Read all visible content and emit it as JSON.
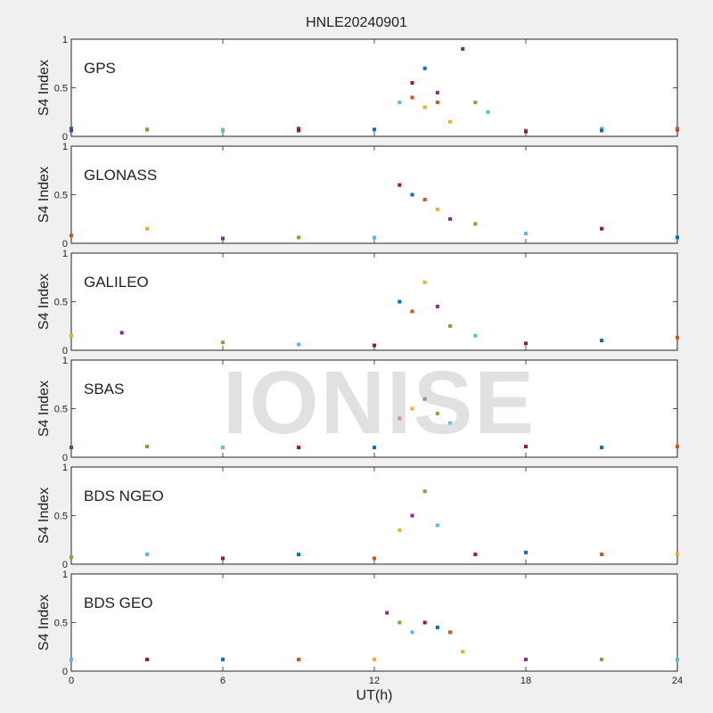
{
  "figure": {
    "title": "HNLE20240901",
    "xlabel": "UT(h)",
    "watermark": "IONISE"
  },
  "chart_data": {
    "type": "scatter",
    "xlim": [
      0,
      24
    ],
    "xticks": [
      0,
      6,
      12,
      18,
      24
    ],
    "ylabel": "S4 Index",
    "palette": [
      "#0072BD",
      "#D95319",
      "#EDB120",
      "#7E2F8E",
      "#77AC30",
      "#4DBEEE",
      "#A2142F"
    ],
    "panels": [
      {
        "name": "GPS",
        "ylim": [
          0,
          1
        ],
        "yticks": [
          0,
          0.5,
          1
        ],
        "series": [
          {
            "x": [
              0,
              3,
              6,
              9,
              12,
              13,
              13.5,
              14,
              14.5,
              15,
              15.5,
              18,
              21,
              24
            ],
            "y": [
              0.08,
              0.07,
              0.07,
              0.08,
              0.07,
              0.35,
              0.55,
              0.7,
              0.35,
              0.15,
              0.9,
              0.06,
              0.08,
              0.07
            ]
          },
          {
            "x": [
              0,
              3,
              6,
              9,
              12,
              13.5,
              14,
              14.5,
              16,
              16.5,
              18,
              21,
              24
            ],
            "y": [
              0.06,
              0.07,
              0.06,
              0.06,
              0.07,
              0.4,
              0.3,
              0.45,
              0.35,
              0.25,
              0.05,
              0.06,
              0.08
            ]
          }
        ]
      },
      {
        "name": "GLONASS",
        "ylim": [
          0,
          1
        ],
        "yticks": [
          0,
          0.5,
          1
        ],
        "series": [
          {
            "x": [
              0,
              3,
              6,
              9,
              12,
              13,
              13.5,
              14,
              14.5,
              15,
              16,
              18,
              21,
              24
            ],
            "y": [
              0.08,
              0.15,
              0.05,
              0.06,
              0.06,
              0.6,
              0.5,
              0.45,
              0.35,
              0.25,
              0.2,
              0.1,
              0.15,
              0.06
            ]
          }
        ]
      },
      {
        "name": "GALILEO",
        "ylim": [
          0,
          1
        ],
        "yticks": [
          0,
          0.5,
          1
        ],
        "series": [
          {
            "x": [
              0,
              2,
              6,
              9,
              12,
              13,
              13.5,
              14,
              14.5,
              15,
              16,
              18,
              21,
              24
            ],
            "y": [
              0.15,
              0.18,
              0.08,
              0.06,
              0.05,
              0.5,
              0.4,
              0.7,
              0.45,
              0.25,
              0.15,
              0.07,
              0.1,
              0.13
            ]
          }
        ]
      },
      {
        "name": "SBAS",
        "ylim": [
          0,
          1
        ],
        "yticks": [
          0,
          0.5,
          1
        ],
        "series": [
          {
            "x": [
              0,
              3,
              6,
              9,
              12,
              13,
              13.5,
              14,
              14.5,
              15,
              18,
              21,
              24
            ],
            "y": [
              0.1,
              0.11,
              0.1,
              0.1,
              0.1,
              0.4,
              0.5,
              0.6,
              0.45,
              0.35,
              0.11,
              0.1,
              0.11
            ]
          }
        ]
      },
      {
        "name": "BDS NGEO",
        "ylim": [
          0,
          1
        ],
        "yticks": [
          0,
          0.5,
          1
        ],
        "series": [
          {
            "x": [
              0,
              3,
              6,
              9,
              12,
              13,
              13.5,
              14,
              14.5,
              16,
              18,
              21,
              24
            ],
            "y": [
              0.07,
              0.1,
              0.06,
              0.1,
              0.06,
              0.35,
              0.5,
              0.75,
              0.4,
              0.1,
              0.12,
              0.1,
              0.1
            ]
          }
        ]
      },
      {
        "name": "BDS GEO",
        "ylim": [
          0,
          1
        ],
        "yticks": [
          0,
          0.5,
          1
        ],
        "series": [
          {
            "x": [
              0,
              3,
              6,
              9,
              12,
              12.5,
              13,
              13.5,
              14,
              14.5,
              15,
              15.5,
              18,
              21,
              24
            ],
            "y": [
              0.12,
              0.12,
              0.12,
              0.12,
              0.12,
              0.6,
              0.5,
              0.4,
              0.5,
              0.45,
              0.4,
              0.2,
              0.12,
              0.12,
              0.12
            ]
          }
        ]
      }
    ]
  }
}
